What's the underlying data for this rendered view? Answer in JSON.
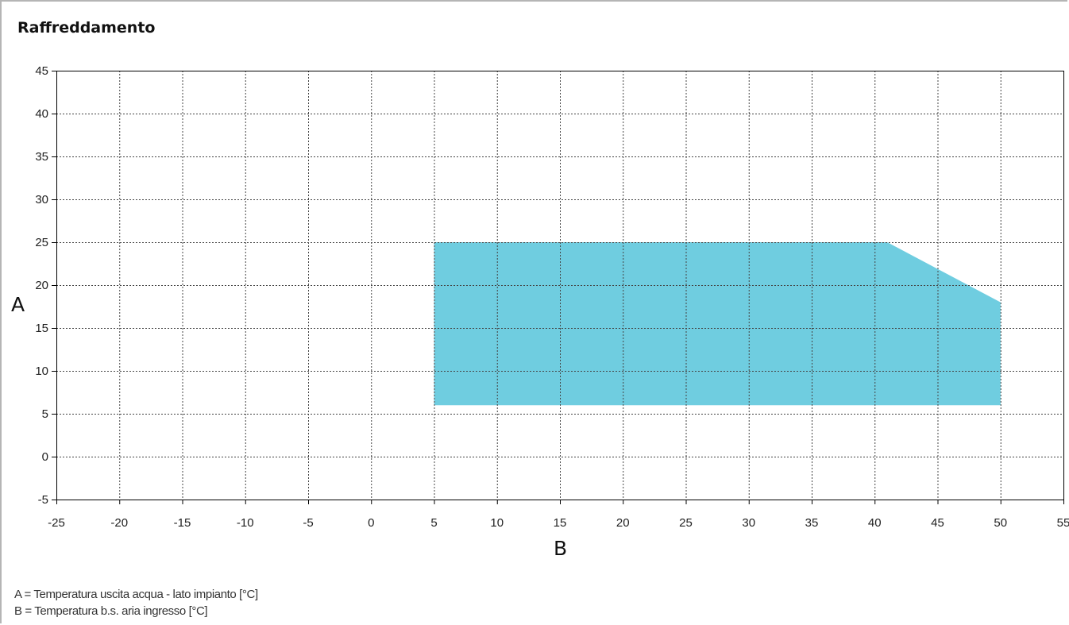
{
  "page": {
    "title": "Raffreddamento",
    "legend": [
      "A = Temperatura uscita acqua - lato impianto [°C]",
      "B = Temperatura b.s. aria ingresso [°C]"
    ]
  },
  "chart_data": {
    "type": "area",
    "title": "Raffreddamento",
    "xlabel": "B",
    "ylabel": "A",
    "xlim": [
      -25,
      55
    ],
    "ylim": [
      -5,
      45
    ],
    "x_ticks": [
      -25,
      -20,
      -15,
      -10,
      -5,
      0,
      5,
      10,
      15,
      20,
      25,
      30,
      35,
      40,
      45,
      50,
      55
    ],
    "y_ticks": [
      -5,
      0,
      5,
      10,
      15,
      20,
      25,
      30,
      35,
      40,
      45
    ],
    "grid": true,
    "series": [
      {
        "polygon": [
          [
            5,
            6
          ],
          [
            5,
            25
          ],
          [
            41,
            25
          ],
          [
            50,
            18
          ],
          [
            50,
            6
          ]
        ],
        "color": "#6fcde0"
      }
    ],
    "frame_color": "#000000",
    "grid_color": "#444444"
  }
}
